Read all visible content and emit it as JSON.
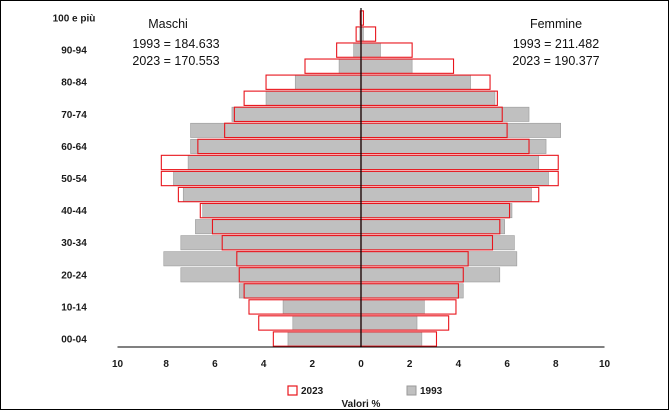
{
  "chart_data": {
    "type": "bar",
    "orientation": "horizontal",
    "xlabel": "Valori %",
    "xlim": [
      -10,
      10
    ],
    "x_ticks": [
      "10",
      "8",
      "6",
      "4",
      "2",
      "0",
      "2",
      "4",
      "6",
      "8",
      "10"
    ],
    "categories": [
      "00-04",
      "05-09",
      "10-14",
      "15-19",
      "20-24",
      "25-29",
      "30-34",
      "35-39",
      "40-44",
      "45-49",
      "50-54",
      "55-59",
      "60-64",
      "65-69",
      "70-74",
      "75-79",
      "80-84",
      "85-89",
      "90-94",
      "95-99",
      "100 e più"
    ],
    "category_labels": [
      "00-04",
      "",
      "10-14",
      "",
      "20-24",
      "",
      "30-34",
      "",
      "40-44",
      "",
      "50-54",
      "",
      "60-64",
      "",
      "70-74",
      "",
      "80-84",
      "",
      "90-94",
      "",
      "100 e più"
    ],
    "colors": {
      "bar_1993_fill": "#c0c0c0",
      "bar_1993_stroke": "#9a9a9a",
      "bar_2023_stroke": "#e8141c",
      "axis": "#000000"
    },
    "series": [
      {
        "name": "2023",
        "style": "red outline",
        "male": [
          3.6,
          4.2,
          4.6,
          4.8,
          5.0,
          5.1,
          5.7,
          6.1,
          6.6,
          7.5,
          8.2,
          8.2,
          6.7,
          5.6,
          5.2,
          4.8,
          3.9,
          2.3,
          1.0,
          0.2,
          0.03
        ],
        "female": [
          3.1,
          3.6,
          3.9,
          4.0,
          4.2,
          4.4,
          5.4,
          5.7,
          6.1,
          7.3,
          8.1,
          8.1,
          6.9,
          6.0,
          5.8,
          5.6,
          5.3,
          3.8,
          2.1,
          0.6,
          0.1
        ]
      },
      {
        "name": "1993",
        "style": "grey filled",
        "male": [
          3.0,
          2.8,
          3.2,
          5.0,
          7.4,
          8.1,
          7.4,
          6.8,
          6.5,
          7.3,
          7.7,
          7.1,
          7.0,
          7.0,
          5.3,
          3.9,
          2.7,
          0.9,
          0.3,
          0.05,
          0.01
        ],
        "female": [
          2.5,
          2.3,
          2.6,
          4.2,
          5.7,
          6.4,
          6.3,
          5.9,
          6.2,
          7.0,
          7.7,
          7.3,
          7.6,
          8.2,
          6.9,
          5.5,
          4.5,
          2.1,
          0.8,
          0.1,
          0.01
        ]
      }
    ],
    "annotations": {
      "male_title": "Maschi",
      "male_1993": "1993 = 184.633",
      "male_2023": "2023 = 170.553",
      "female_title": "Femmine",
      "female_1993": "1993 = 211.482",
      "female_2023": "2023 = 190.377"
    },
    "legend": {
      "placement": "bottom",
      "items": [
        {
          "label": "2023",
          "style": "red outline"
        },
        {
          "label": "1993",
          "style": "grey filled"
        }
      ]
    }
  }
}
